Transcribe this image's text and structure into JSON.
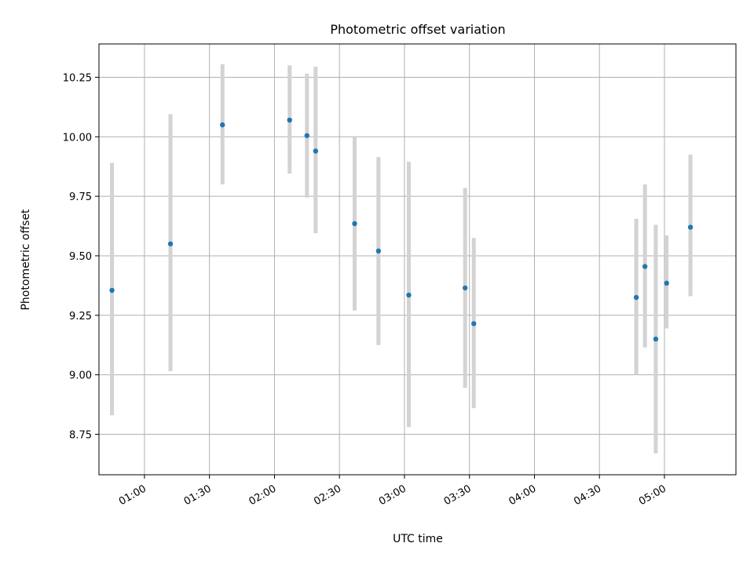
{
  "chart_data": {
    "type": "scatter",
    "title": "Photometric offset variation",
    "xlabel": "UTC time",
    "ylabel": "Photometric offset",
    "x_tick_labels": [
      "01:00",
      "01:30",
      "02:00",
      "02:30",
      "03:00",
      "03:30",
      "04:00",
      "04:30",
      "05:00"
    ],
    "y_tick_labels": [
      "8.75",
      "9.00",
      "9.25",
      "9.50",
      "9.75",
      "10.00",
      "10.25"
    ],
    "xlim": [
      "00:39",
      "05:33"
    ],
    "ylim": [
      8.58,
      10.39
    ],
    "grid": true,
    "colors": {
      "points": "#1f77b4",
      "errorbars": "#d3d3d3",
      "grid": "#b0b0b0"
    },
    "points": [
      {
        "x": "00:45",
        "y": 9.355,
        "yerr": [
          8.83,
          9.89
        ]
      },
      {
        "x": "01:12",
        "y": 9.55,
        "yerr": [
          9.015,
          10.095
        ]
      },
      {
        "x": "01:36",
        "y": 10.05,
        "yerr": [
          9.8,
          10.305
        ]
      },
      {
        "x": "02:07",
        "y": 10.07,
        "yerr": [
          9.845,
          10.3
        ]
      },
      {
        "x": "02:15",
        "y": 10.005,
        "yerr": [
          9.745,
          10.265
        ]
      },
      {
        "x": "02:19",
        "y": 9.94,
        "yerr": [
          9.595,
          10.295
        ]
      },
      {
        "x": "02:37",
        "y": 9.635,
        "yerr": [
          9.27,
          10.0
        ]
      },
      {
        "x": "02:48",
        "y": 9.52,
        "yerr": [
          9.125,
          9.915
        ]
      },
      {
        "x": "03:02",
        "y": 9.335,
        "yerr": [
          8.78,
          9.895
        ]
      },
      {
        "x": "03:28",
        "y": 9.365,
        "yerr": [
          8.945,
          9.785
        ]
      },
      {
        "x": "03:32",
        "y": 9.215,
        "yerr": [
          8.86,
          9.575
        ]
      },
      {
        "x": "04:47",
        "y": 9.325,
        "yerr": [
          9.0,
          9.655
        ]
      },
      {
        "x": "04:51",
        "y": 9.455,
        "yerr": [
          9.115,
          9.8
        ]
      },
      {
        "x": "04:56",
        "y": 9.15,
        "yerr": [
          8.67,
          9.63
        ]
      },
      {
        "x": "05:01",
        "y": 9.385,
        "yerr": [
          9.195,
          9.585
        ]
      },
      {
        "x": "05:12",
        "y": 9.62,
        "yerr": [
          9.33,
          9.925
        ]
      }
    ]
  }
}
